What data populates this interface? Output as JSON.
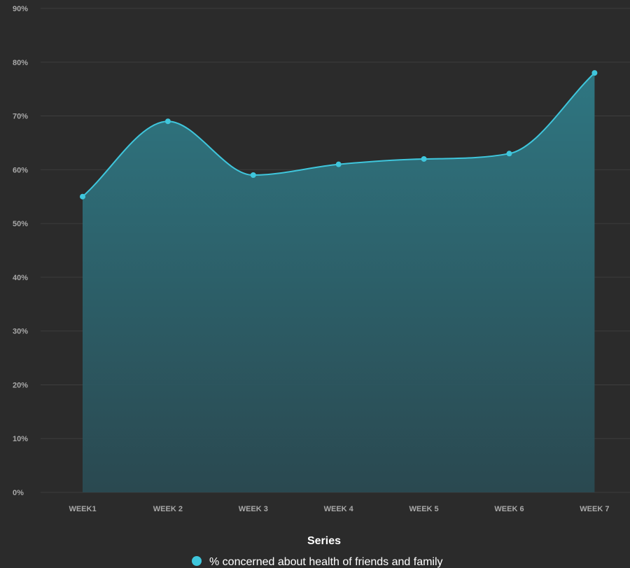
{
  "chart_data": {
    "type": "area",
    "categories": [
      "WEEK1",
      "WEEK 2",
      "WEEK 3",
      "WEEK 4",
      "WEEK 5",
      "WEEK 6",
      "WEEK 7"
    ],
    "series": [
      {
        "name": "% concerned about health of friends and family",
        "values": [
          55,
          69,
          59,
          61,
          62,
          63,
          78
        ]
      }
    ],
    "ylim": [
      0,
      90
    ],
    "y_ticks": [
      "0%",
      "10%",
      "20%",
      "30%",
      "40%",
      "50%",
      "60%",
      "70%",
      "80%",
      "90%"
    ],
    "grid": true,
    "legend_title": "Series",
    "legend_position": "bottom-center",
    "colors": {
      "line": "#3fc6dc",
      "fill_top": "#2f7a86",
      "fill_bottom": "#2a4a52",
      "background": "#2b2b2b"
    }
  }
}
